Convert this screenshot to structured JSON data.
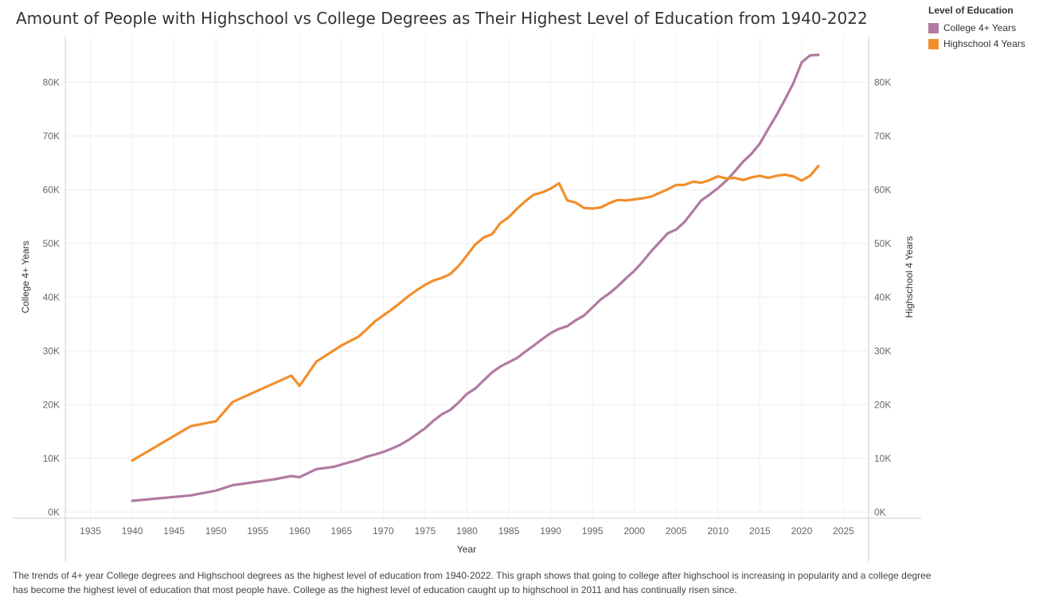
{
  "title": "Amount of People with Highschool vs College Degrees as Their Highest Level of Education from 1940-2022",
  "legend": {
    "title": "Level of Education",
    "items": [
      {
        "label": "College 4+ Years",
        "color": "#b07aa1"
      },
      {
        "label": "Highschool 4 Years",
        "color": "#f28e2b"
      }
    ]
  },
  "caption": "The trends of 4+ year College degrees and Highschool degrees as the highest  level of education from 1940-2022.  This graph shows that going to college after highschool is  increasing in popularity and a college degree has become the highest level of education that most people have. College as the highest level of education caught up to highschool in 2011 and has continually risen since.",
  "chart_data": {
    "type": "line",
    "xlabel": "Year",
    "ylabel_left": "College 4+ Years",
    "ylabel_right": "Highschool 4 Years",
    "xlim": [
      1932,
      2028
    ],
    "ylim": [
      -1000,
      88500
    ],
    "x_ticks": [
      1935,
      1940,
      1945,
      1950,
      1955,
      1960,
      1965,
      1970,
      1975,
      1980,
      1985,
      1990,
      1995,
      2000,
      2005,
      2010,
      2015,
      2020,
      2025
    ],
    "y_ticks": [
      {
        "value": 0,
        "label": "0K"
      },
      {
        "value": 10000,
        "label": "10K"
      },
      {
        "value": 20000,
        "label": "20K"
      },
      {
        "value": 30000,
        "label": "30K"
      },
      {
        "value": 40000,
        "label": "40K"
      },
      {
        "value": 50000,
        "label": "50K"
      },
      {
        "value": 60000,
        "label": "60K"
      },
      {
        "value": 70000,
        "label": "70K"
      },
      {
        "value": 80000,
        "label": "80K"
      }
    ],
    "grid": true,
    "series": [
      {
        "name": "College 4+ Years",
        "color": "#b07aa1",
        "points": [
          [
            1940,
            2100
          ],
          [
            1947,
            3100
          ],
          [
            1950,
            4000
          ],
          [
            1952,
            5000
          ],
          [
            1957,
            6100
          ],
          [
            1959,
            6700
          ],
          [
            1960,
            6500
          ],
          [
            1962,
            8000
          ],
          [
            1964,
            8400
          ],
          [
            1966,
            9300
          ],
          [
            1967,
            9700
          ],
          [
            1968,
            10300
          ],
          [
            1969,
            10700
          ],
          [
            1970,
            11200
          ],
          [
            1971,
            11800
          ],
          [
            1972,
            12500
          ],
          [
            1973,
            13400
          ],
          [
            1974,
            14500
          ],
          [
            1975,
            15600
          ],
          [
            1976,
            17000
          ],
          [
            1977,
            18200
          ],
          [
            1978,
            19000
          ],
          [
            1979,
            20400
          ],
          [
            1980,
            22000
          ],
          [
            1981,
            23000
          ],
          [
            1982,
            24500
          ],
          [
            1983,
            26000
          ],
          [
            1984,
            27100
          ],
          [
            1985,
            27900
          ],
          [
            1986,
            28700
          ],
          [
            1987,
            29900
          ],
          [
            1988,
            31000
          ],
          [
            1989,
            32200
          ],
          [
            1990,
            33300
          ],
          [
            1991,
            34100
          ],
          [
            1992,
            34600
          ],
          [
            1993,
            35700
          ],
          [
            1994,
            36600
          ],
          [
            1995,
            38100
          ],
          [
            1996,
            39600
          ],
          [
            1997,
            40700
          ],
          [
            1998,
            42000
          ],
          [
            1999,
            43500
          ],
          [
            2000,
            44900
          ],
          [
            2001,
            46600
          ],
          [
            2002,
            48500
          ],
          [
            2003,
            50200
          ],
          [
            2004,
            51900
          ],
          [
            2005,
            52600
          ],
          [
            2006,
            54000
          ],
          [
            2007,
            56000
          ],
          [
            2008,
            58000
          ],
          [
            2009,
            59100
          ],
          [
            2010,
            60300
          ],
          [
            2011,
            61700
          ],
          [
            2012,
            63400
          ],
          [
            2013,
            65200
          ],
          [
            2014,
            66700
          ],
          [
            2015,
            68600
          ],
          [
            2016,
            71300
          ],
          [
            2017,
            73900
          ],
          [
            2018,
            76800
          ],
          [
            2019,
            79800
          ],
          [
            2020,
            83700
          ],
          [
            2021,
            85000
          ],
          [
            2022,
            85100
          ]
        ]
      },
      {
        "name": "Highschool 4 Years",
        "color": "#f28e2b",
        "points": [
          [
            1940,
            9600
          ],
          [
            1947,
            16000
          ],
          [
            1950,
            16900
          ],
          [
            1952,
            20500
          ],
          [
            1959,
            25400
          ],
          [
            1960,
            23500
          ],
          [
            1962,
            28000
          ],
          [
            1964,
            30000
          ],
          [
            1965,
            31000
          ],
          [
            1967,
            32600
          ],
          [
            1968,
            34000
          ],
          [
            1969,
            35500
          ],
          [
            1970,
            36600
          ],
          [
            1971,
            37700
          ],
          [
            1972,
            38900
          ],
          [
            1973,
            40200
          ],
          [
            1974,
            41300
          ],
          [
            1975,
            42300
          ],
          [
            1976,
            43100
          ],
          [
            1977,
            43600
          ],
          [
            1978,
            44300
          ],
          [
            1979,
            45800
          ],
          [
            1980,
            47800
          ],
          [
            1981,
            49800
          ],
          [
            1982,
            51100
          ],
          [
            1983,
            51700
          ],
          [
            1984,
            53800
          ],
          [
            1985,
            54900
          ],
          [
            1986,
            56500
          ],
          [
            1987,
            57900
          ],
          [
            1988,
            59100
          ],
          [
            1989,
            59500
          ],
          [
            1990,
            60200
          ],
          [
            1991,
            61200
          ],
          [
            1992,
            58000
          ],
          [
            1993,
            57600
          ],
          [
            1994,
            56600
          ],
          [
            1995,
            56500
          ],
          [
            1996,
            56700
          ],
          [
            1997,
            57500
          ],
          [
            1998,
            58100
          ],
          [
            1999,
            58000
          ],
          [
            2000,
            58200
          ],
          [
            2001,
            58400
          ],
          [
            2002,
            58700
          ],
          [
            2003,
            59400
          ],
          [
            2004,
            60100
          ],
          [
            2005,
            60900
          ],
          [
            2006,
            60900
          ],
          [
            2007,
            61500
          ],
          [
            2008,
            61300
          ],
          [
            2009,
            61800
          ],
          [
            2010,
            62500
          ],
          [
            2011,
            62100
          ],
          [
            2012,
            62200
          ],
          [
            2013,
            61800
          ],
          [
            2014,
            62300
          ],
          [
            2015,
            62600
          ],
          [
            2016,
            62200
          ],
          [
            2017,
            62600
          ],
          [
            2018,
            62800
          ],
          [
            2019,
            62500
          ],
          [
            2020,
            61700
          ],
          [
            2021,
            62600
          ],
          [
            2022,
            64400
          ]
        ]
      }
    ]
  }
}
